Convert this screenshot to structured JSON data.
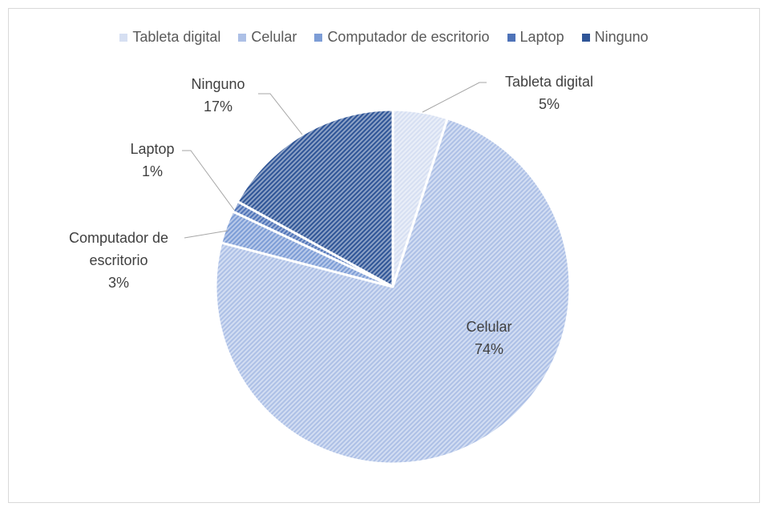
{
  "chart_data": {
    "type": "pie",
    "categories": [
      "Tableta digital",
      "Celular",
      "Computador de escritorio",
      "Laptop",
      "Ninguno"
    ],
    "values": [
      5,
      74,
      3,
      1,
      17
    ],
    "value_labels": [
      "5%",
      "74%",
      "3%",
      "1%",
      "17%"
    ],
    "colors": [
      "#d6dff2",
      "#adc0e6",
      "#7d9dd6",
      "#4e73b8",
      "#2f5597"
    ],
    "legend": "top"
  }
}
